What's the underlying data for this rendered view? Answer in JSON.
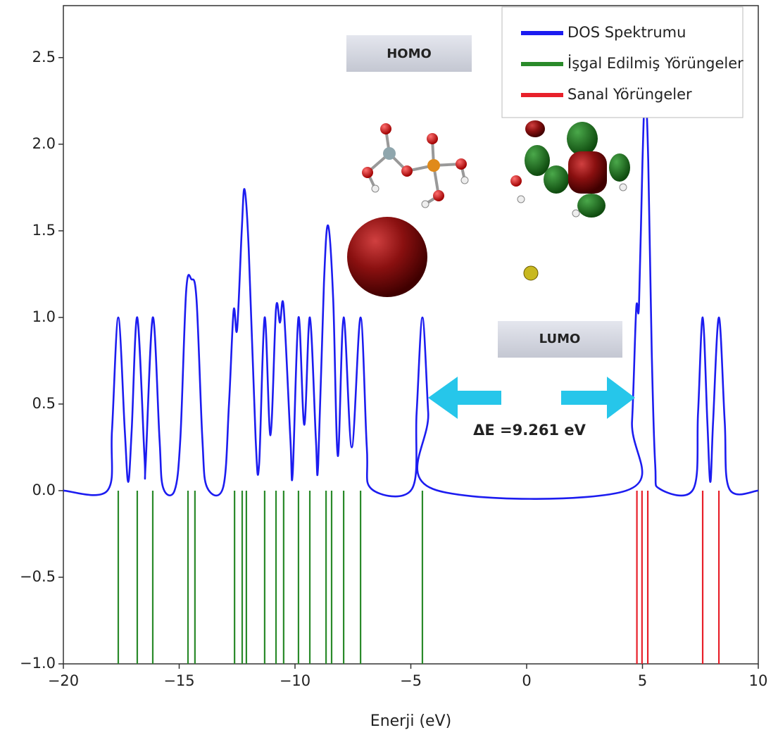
{
  "chart_data": {
    "type": "dos",
    "xlabel": "Enerji (eV)",
    "xlim": [
      -20,
      10
    ],
    "ylim": [
      -1,
      2.8
    ],
    "xticks": [
      {
        "value": -20,
        "label": "−20"
      },
      {
        "value": -15,
        "label": "−15"
      },
      {
        "value": -10,
        "label": "−10"
      },
      {
        "value": -5,
        "label": "−5"
      },
      0,
      5,
      10
    ],
    "yticks": [
      {
        "value": -1,
        "label": "−1.0"
      },
      {
        "value": -0.5,
        "label": "−0.5"
      },
      {
        "value": 0,
        "label": "0.0"
      },
      0.5,
      {
        "value": 1,
        "label": "1.0"
      },
      1.5,
      {
        "value": 2,
        "label": "2.0"
      },
      2.5
    ],
    "series": [
      {
        "name": "DOS Spektrumu",
        "color": "#1c1cf0",
        "kind": "curve",
        "x": [
          -20,
          -18.1,
          -17.9,
          -17.63,
          -17.35,
          -17.2,
          -17.05,
          -16.81,
          -16.5,
          -16.45,
          -16.14,
          -15.85,
          -15.7,
          -15.2,
          -14.95,
          -14.7,
          -14.47,
          -14.25,
          -14.0,
          -13.8,
          -13.1,
          -12.85,
          -12.65,
          -12.5,
          -12.3,
          -12.18,
          -12.0,
          -11.7,
          -11.55,
          -11.31,
          -11.06,
          -10.82,
          -10.65,
          -10.49,
          -10.2,
          -10.1,
          -9.85,
          -9.6,
          -9.36,
          -9.1,
          -9.0,
          -8.75,
          -8.57,
          -8.35,
          -8.15,
          -7.9,
          -7.55,
          -7.17,
          -6.9,
          -6.7,
          -4.95,
          -4.75,
          -4.5,
          -4.25,
          -4.05,
          4.3,
          4.55,
          4.73,
          4.85,
          5.0,
          5.12,
          5.25,
          5.4,
          5.55,
          5.75,
          7.2,
          7.4,
          7.6,
          7.8,
          7.93,
          8.05,
          8.3,
          8.55,
          8.75,
          10
        ],
        "values": [
          0,
          0,
          0.35,
          1.0,
          0.35,
          0.05,
          0.35,
          1.0,
          0.2,
          0.15,
          1.0,
          0.3,
          0.02,
          0,
          0.3,
          1.15,
          1.22,
          1.1,
          0.3,
          0.02,
          0.02,
          0.5,
          1.04,
          0.93,
          1.5,
          1.74,
          1.4,
          0.3,
          0.15,
          1.0,
          0.32,
          1.05,
          0.97,
          1.06,
          0.3,
          0.1,
          1.0,
          0.38,
          1.0,
          0.3,
          0.15,
          1.2,
          1.53,
          1.1,
          0.2,
          1.0,
          0.25,
          1.0,
          0.25,
          0.01,
          0.01,
          0.45,
          1.0,
          0.45,
          0.01,
          0,
          0.4,
          1.05,
          1.07,
          1.9,
          2.3,
          1.9,
          0.8,
          0.15,
          0.01,
          0.01,
          0.45,
          1.0,
          0.4,
          0.05,
          0.4,
          1.0,
          0.4,
          0.01,
          0
        ]
      },
      {
        "name": "İşgal Edilmiş Yörüngeler",
        "color": "#2a8a2a",
        "kind": "sticks",
        "x": [
          -17.63,
          -16.81,
          -16.14,
          -14.62,
          -14.32,
          -12.61,
          -12.28,
          -12.1,
          -11.31,
          -10.82,
          -10.49,
          -9.85,
          -9.36,
          -8.66,
          -8.42,
          -7.9,
          -7.17,
          -4.5
        ]
      },
      {
        "name": "Sanal Yörüngeler",
        "color": "#e8202a",
        "kind": "sticks",
        "x": [
          4.76,
          4.98,
          5.23,
          7.6,
          8.3
        ]
      }
    ],
    "annotations": {
      "homo": "HOMO",
      "lumo": "LUMO",
      "gap": "ΔE =9.261 eV"
    }
  }
}
